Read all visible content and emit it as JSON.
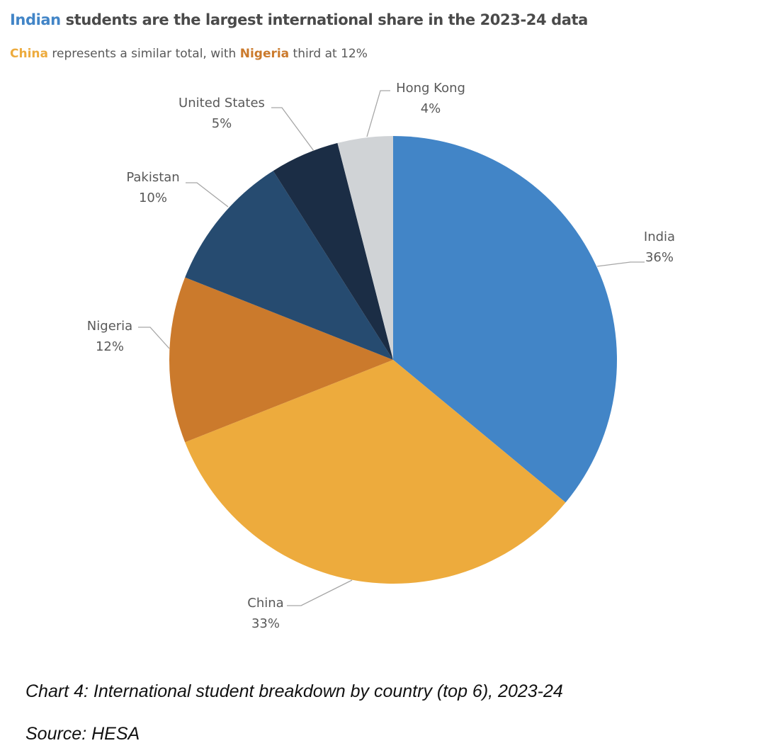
{
  "header": {
    "title_highlight": "Indian",
    "title_rest": " students are the largest international share in the 2023-24 data",
    "subtitle_highlight_1": "China",
    "subtitle_mid": " represents a similar total, with ",
    "subtitle_highlight_2": "Nigeria",
    "subtitle_end": " third at 12%"
  },
  "colors": {
    "india": "#4285C7",
    "china": "#EDAB3D",
    "nigeria": "#CB7A2C",
    "text": "#595959",
    "leader": "#A6A6A6"
  },
  "chart_data": {
    "type": "pie",
    "title": "Indian students are the largest international share in the 2023-24 data",
    "start": "12 o'clock, clockwise",
    "slices": [
      {
        "key": "india",
        "label": "India",
        "value": 36,
        "value_label": "36%",
        "color": "#4285C7"
      },
      {
        "key": "china",
        "label": "China",
        "value": 33,
        "value_label": "33%",
        "color": "#EDAB3D"
      },
      {
        "key": "nigeria",
        "label": "Nigeria",
        "value": 12,
        "value_label": "12%",
        "color": "#CB7A2C"
      },
      {
        "key": "pakistan",
        "label": "Pakistan",
        "value": 10,
        "value_label": "10%",
        "color": "#264B70"
      },
      {
        "key": "united-states",
        "label": "United States",
        "value": 5,
        "value_label": "5%",
        "color": "#1B2D45"
      },
      {
        "key": "hong-kong",
        "label": "Hong Kong",
        "value": 4,
        "value_label": "4%",
        "color": "#D0D3D6"
      }
    ]
  },
  "footer": {
    "caption": "Chart 4: International student breakdown by country (top 6), 2023-24",
    "source": "Source: HESA"
  }
}
